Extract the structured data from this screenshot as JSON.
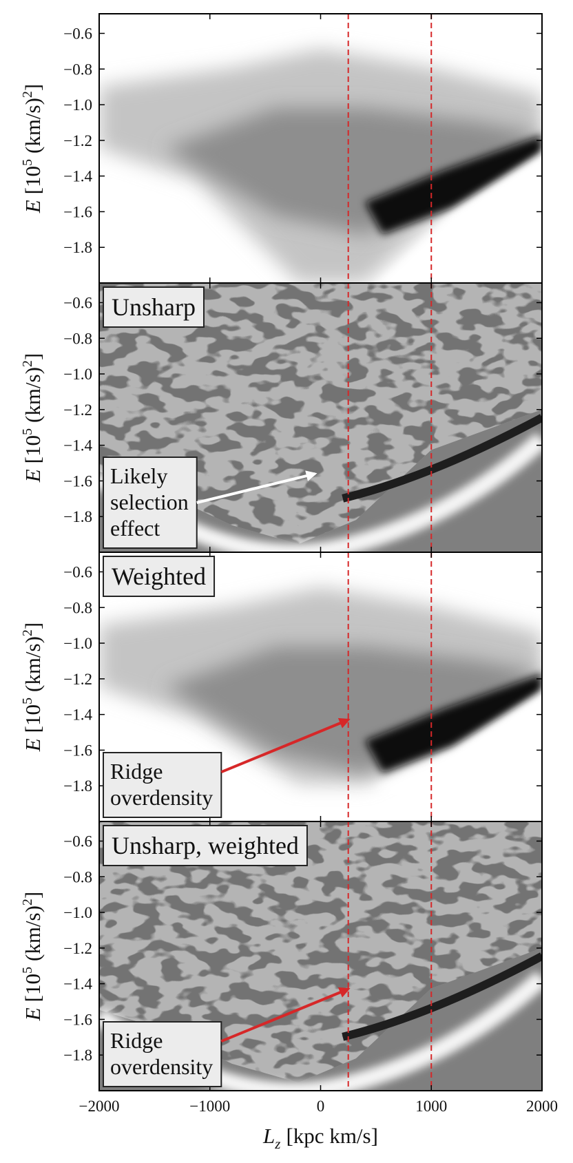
{
  "chart_data": [
    {
      "type": "heatmap",
      "shading": "density",
      "xlim": [
        -2000,
        2000
      ],
      "xticks": [
        -2000,
        -1000,
        0,
        1000,
        2000
      ],
      "ylim": [
        -2.0,
        -0.49
      ],
      "yticks": [
        {
          "value": -1.8,
          "label": "−1.8"
        },
        {
          "value": -1.6,
          "label": "−1.6"
        },
        {
          "value": -1.4,
          "label": "−1.4"
        },
        {
          "value": -1.2,
          "label": "−1.2"
        },
        {
          "value": -1.0,
          "label": "−1.0"
        },
        {
          "value": -0.8,
          "label": "−0.8"
        },
        {
          "value": -0.6,
          "label": "−0.6"
        }
      ],
      "ylabel": [
        "E",
        "[10",
        "5",
        "(km/s)",
        "2",
        "]"
      ],
      "vlines": [
        250,
        1000
      ],
      "vline_color": "#d62728"
    },
    {
      "type": "heatmap",
      "shading": "unsharp",
      "title": "Unsharp",
      "xlim": [
        -2000,
        2000
      ],
      "xticks": [
        -2000,
        -1000,
        0,
        1000,
        2000
      ],
      "ylim": [
        -2.0,
        -0.49
      ],
      "yticks": [
        {
          "value": -1.8,
          "label": "−1.8"
        },
        {
          "value": -1.6,
          "label": "−1.6"
        },
        {
          "value": -1.4,
          "label": "−1.4"
        },
        {
          "value": -1.2,
          "label": "−1.2"
        },
        {
          "value": -1.0,
          "label": "−1.0"
        },
        {
          "value": -0.8,
          "label": "−0.8"
        },
        {
          "value": -0.6,
          "label": "−0.6"
        }
      ],
      "ylabel": [
        "E",
        "[10",
        "5",
        "(km/s)",
        "2",
        "]"
      ],
      "vlines": [
        250,
        1000
      ],
      "vline_color": "#d62728",
      "annotation": {
        "text": [
          "Likely",
          "selection",
          "effect"
        ],
        "xy": [
          -50,
          -1.56
        ],
        "color": "#ffffff",
        "text_color": "#111111"
      }
    },
    {
      "type": "heatmap",
      "shading": "density",
      "title": "Weighted",
      "xlim": [
        -2000,
        2000
      ],
      "xticks": [
        -2000,
        -1000,
        0,
        1000,
        2000
      ],
      "ylim": [
        -2.0,
        -0.49
      ],
      "yticks": [
        {
          "value": -1.8,
          "label": "−1.8"
        },
        {
          "value": -1.6,
          "label": "−1.6"
        },
        {
          "value": -1.4,
          "label": "−1.4"
        },
        {
          "value": -1.2,
          "label": "−1.2"
        },
        {
          "value": -1.0,
          "label": "−1.0"
        },
        {
          "value": -0.8,
          "label": "−0.8"
        },
        {
          "value": -0.6,
          "label": "−0.6"
        }
      ],
      "ylabel": [
        "E",
        "[10",
        "5",
        "(km/s)",
        "2",
        "]"
      ],
      "vlines": [
        250,
        1000
      ],
      "vline_color": "#d62728",
      "annotation": {
        "text": [
          "Ridge",
          "overdensity"
        ],
        "xy": [
          250,
          -1.43
        ],
        "color": "#d62728",
        "text_color": "#d62728"
      }
    },
    {
      "type": "heatmap",
      "shading": "unsharp",
      "title": "Unsharp, weighted",
      "xlim": [
        -2000,
        2000
      ],
      "xticks": [
        {
          "value": -2000,
          "label": "−2000"
        },
        {
          "value": -1000,
          "label": "−1000"
        },
        0,
        1000,
        2000
      ],
      "xlabel": [
        "L",
        "z",
        "[kpc km/s]"
      ],
      "ylim": [
        -2.0,
        -0.49
      ],
      "yticks": [
        {
          "value": -1.8,
          "label": "−1.8"
        },
        {
          "value": -1.6,
          "label": "−1.6"
        },
        {
          "value": -1.4,
          "label": "−1.4"
        },
        {
          "value": -1.2,
          "label": "−1.2"
        },
        {
          "value": -1.0,
          "label": "−1.0"
        },
        {
          "value": -0.8,
          "label": "−0.8"
        },
        {
          "value": -0.6,
          "label": "−0.6"
        }
      ],
      "ylabel": [
        "E",
        "[10",
        "5",
        "(km/s)",
        "2",
        "]"
      ],
      "vlines": [
        250,
        1000
      ],
      "vline_color": "#d62728",
      "annotation": {
        "text": [
          "Ridge",
          "overdensity"
        ],
        "xy": [
          250,
          -1.43
        ],
        "color": "#d62728",
        "text_color": "#d62728"
      }
    }
  ]
}
